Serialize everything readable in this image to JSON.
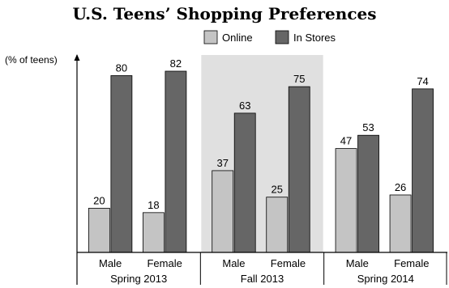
{
  "chart_data": {
    "type": "bar",
    "title": "U.S. Teens’ Shopping Preferences",
    "ylabel": "(% of teens)",
    "xlabel": "",
    "ylim": [
      0,
      90
    ],
    "grid": false,
    "legend_position": "top",
    "groups": [
      {
        "label": "Spring 2013",
        "categories": [
          "Male",
          "Female"
        ],
        "shaded": false
      },
      {
        "label": "Fall 2013",
        "categories": [
          "Male",
          "Female"
        ],
        "shaded": true
      },
      {
        "label": "Spring 2014",
        "categories": [
          "Male",
          "Female"
        ],
        "shaded": false
      }
    ],
    "series": [
      {
        "name": "Online",
        "color": "#c4c4c4",
        "values": [
          20,
          18,
          37,
          25,
          47,
          26
        ]
      },
      {
        "name": "In Stores",
        "color": "#666666",
        "values": [
          80,
          82,
          63,
          75,
          53,
          74
        ]
      }
    ]
  }
}
